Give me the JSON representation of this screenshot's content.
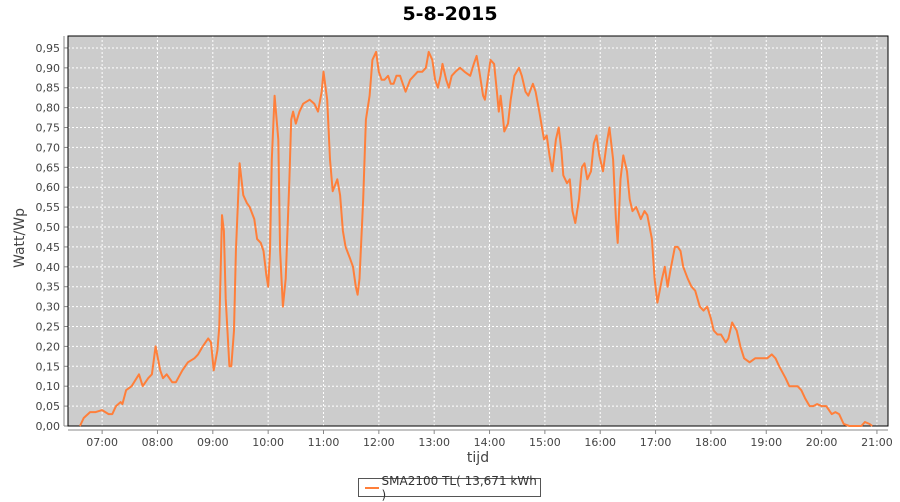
{
  "chart_data": {
    "type": "line",
    "title": "5-8-2015",
    "xlabel": "tijd",
    "ylabel": "Watt/Wp",
    "xlim": [
      "06:23",
      "21:12"
    ],
    "ylim": [
      0,
      0.98
    ],
    "grid": true,
    "legend_position": "bottom",
    "x_ticks": [
      "07:00",
      "08:00",
      "09:00",
      "10:00",
      "11:00",
      "12:00",
      "13:00",
      "14:00",
      "15:00",
      "16:00",
      "17:00",
      "18:00",
      "19:00",
      "20:00",
      "21:00"
    ],
    "y_ticks": [
      "0,00",
      "0,05",
      "0,10",
      "0,15",
      "0,20",
      "0,25",
      "0,30",
      "0,35",
      "0,40",
      "0,45",
      "0,50",
      "0,55",
      "0,60",
      "0,65",
      "0,70",
      "0,75",
      "0,80",
      "0,85",
      "0,90",
      "0,95"
    ],
    "colors": {
      "plot_background": "#cccccc",
      "series": "#ff7f3a",
      "grid": "#ffffff"
    },
    "series": [
      {
        "name": "SMA2100 TL( 13,671 kWh )",
        "x": [
          "06:36",
          "06:40",
          "06:47",
          "06:53",
          "07:00",
          "07:07",
          "07:11",
          "07:15",
          "07:20",
          "07:22",
          "07:26",
          "07:32",
          "07:40",
          "07:44",
          "07:50",
          "07:54",
          "07:58",
          "08:03",
          "08:06",
          "08:10",
          "08:16",
          "08:20",
          "08:27",
          "08:33",
          "08:40",
          "08:44",
          "08:49",
          "08:55",
          "08:58",
          "09:01",
          "09:05",
          "09:07",
          "09:10",
          "09:12",
          "09:14",
          "09:18",
          "09:20",
          "09:23",
          "09:25",
          "09:29",
          "09:33",
          "09:37",
          "09:40",
          "09:45",
          "09:48",
          "09:52",
          "09:55",
          "09:58",
          "10:00",
          "10:02",
          "10:04",
          "10:07",
          "10:11",
          "10:13",
          "10:16",
          "10:19",
          "10:23",
          "10:25",
          "10:27",
          "10:30",
          "10:34",
          "10:38",
          "10:45",
          "10:50",
          "10:54",
          "10:58",
          "11:00",
          "11:04",
          "11:07",
          "11:10",
          "11:15",
          "11:18",
          "11:21",
          "11:24",
          "11:29",
          "11:32",
          "11:35",
          "11:37",
          "11:39",
          "11:43",
          "11:46",
          "11:50",
          "11:53",
          "11:57",
          "12:00",
          "12:03",
          "12:06",
          "12:10",
          "12:13",
          "12:16",
          "12:19",
          "12:23",
          "12:26",
          "12:29",
          "12:34",
          "12:38",
          "12:42",
          "12:47",
          "12:51",
          "12:54",
          "12:58",
          "13:01",
          "13:04",
          "13:07",
          "13:09",
          "13:13",
          "13:16",
          "13:19",
          "13:23",
          "13:28",
          "13:33",
          "13:39",
          "13:43",
          "13:46",
          "13:49",
          "13:53",
          "13:55",
          "13:58",
          "14:01",
          "14:05",
          "14:08",
          "14:10",
          "14:12",
          "14:14",
          "14:16",
          "14:20",
          "14:23",
          "14:27",
          "14:32",
          "14:35",
          "14:39",
          "14:42",
          "14:47",
          "14:50",
          "14:54",
          "14:59",
          "15:02",
          "15:05",
          "15:08",
          "15:12",
          "15:15",
          "15:18",
          "15:20",
          "15:24",
          "15:27",
          "15:30",
          "15:33",
          "15:37",
          "15:40",
          "15:43",
          "15:46",
          "15:50",
          "15:53",
          "15:56",
          "15:59",
          "16:03",
          "16:07",
          "16:10",
          "16:14",
          "16:17",
          "16:19",
          "16:22",
          "16:25",
          "16:29",
          "16:32",
          "16:35",
          "16:39",
          "16:44",
          "16:48",
          "16:51",
          "16:56",
          "16:59",
          "17:02",
          "17:07",
          "17:10",
          "17:13",
          "17:16",
          "17:21",
          "17:24",
          "17:27",
          "17:30",
          "17:35",
          "17:39",
          "17:43",
          "17:48",
          "17:52",
          "17:56",
          "18:00",
          "18:03",
          "18:07",
          "18:11",
          "18:16",
          "18:19",
          "18:23",
          "18:28",
          "18:32",
          "18:36",
          "18:42",
          "18:48",
          "18:55",
          "19:01",
          "19:06",
          "19:10",
          "19:14",
          "19:21",
          "19:25",
          "19:29",
          "19:34",
          "19:38",
          "19:42",
          "19:47",
          "19:51",
          "19:55",
          "20:00",
          "20:05",
          "20:11",
          "20:15",
          "20:19",
          "20:24",
          "20:30",
          "20:43",
          "20:47",
          "20:52",
          "20:55"
        ],
        "y": [
          0,
          0.02,
          0.035,
          0.035,
          0.04,
          0.03,
          0.03,
          0.05,
          0.06,
          0.055,
          0.09,
          0.1,
          0.13,
          0.1,
          0.12,
          0.13,
          0.2,
          0.14,
          0.12,
          0.13,
          0.11,
          0.11,
          0.14,
          0.16,
          0.17,
          0.18,
          0.2,
          0.22,
          0.21,
          0.14,
          0.19,
          0.25,
          0.53,
          0.49,
          0.32,
          0.15,
          0.15,
          0.24,
          0.44,
          0.66,
          0.58,
          0.56,
          0.55,
          0.52,
          0.47,
          0.46,
          0.44,
          0.38,
          0.35,
          0.44,
          0.67,
          0.83,
          0.72,
          0.44,
          0.3,
          0.37,
          0.62,
          0.77,
          0.79,
          0.76,
          0.79,
          0.81,
          0.82,
          0.81,
          0.79,
          0.84,
          0.89,
          0.82,
          0.67,
          0.59,
          0.62,
          0.58,
          0.49,
          0.45,
          0.42,
          0.4,
          0.35,
          0.33,
          0.37,
          0.57,
          0.77,
          0.83,
          0.92,
          0.94,
          0.89,
          0.87,
          0.87,
          0.88,
          0.86,
          0.86,
          0.88,
          0.88,
          0.86,
          0.84,
          0.87,
          0.88,
          0.89,
          0.89,
          0.9,
          0.94,
          0.92,
          0.87,
          0.85,
          0.88,
          0.91,
          0.87,
          0.85,
          0.88,
          0.89,
          0.9,
          0.89,
          0.88,
          0.91,
          0.93,
          0.89,
          0.83,
          0.82,
          0.87,
          0.92,
          0.91,
          0.84,
          0.79,
          0.83,
          0.79,
          0.74,
          0.76,
          0.82,
          0.88,
          0.9,
          0.88,
          0.84,
          0.83,
          0.86,
          0.84,
          0.79,
          0.72,
          0.73,
          0.68,
          0.64,
          0.72,
          0.75,
          0.69,
          0.63,
          0.61,
          0.62,
          0.54,
          0.51,
          0.57,
          0.65,
          0.66,
          0.62,
          0.64,
          0.71,
          0.73,
          0.68,
          0.64,
          0.71,
          0.75,
          0.67,
          0.52,
          0.46,
          0.62,
          0.68,
          0.64,
          0.57,
          0.54,
          0.55,
          0.52,
          0.54,
          0.53,
          0.47,
          0.37,
          0.31,
          0.37,
          0.4,
          0.35,
          0.39,
          0.45,
          0.45,
          0.44,
          0.4,
          0.37,
          0.35,
          0.34,
          0.3,
          0.29,
          0.3,
          0.27,
          0.24,
          0.23,
          0.23,
          0.21,
          0.22,
          0.26,
          0.24,
          0.2,
          0.17,
          0.16,
          0.17,
          0.17,
          0.17,
          0.18,
          0.17,
          0.15,
          0.12,
          0.1,
          0.1,
          0.1,
          0.09,
          0.07,
          0.05,
          0.05,
          0.055,
          0.05,
          0.05,
          0.03,
          0.035,
          0.03,
          0.005,
          0,
          0,
          0.01,
          0.005,
          0
        ]
      }
    ]
  }
}
